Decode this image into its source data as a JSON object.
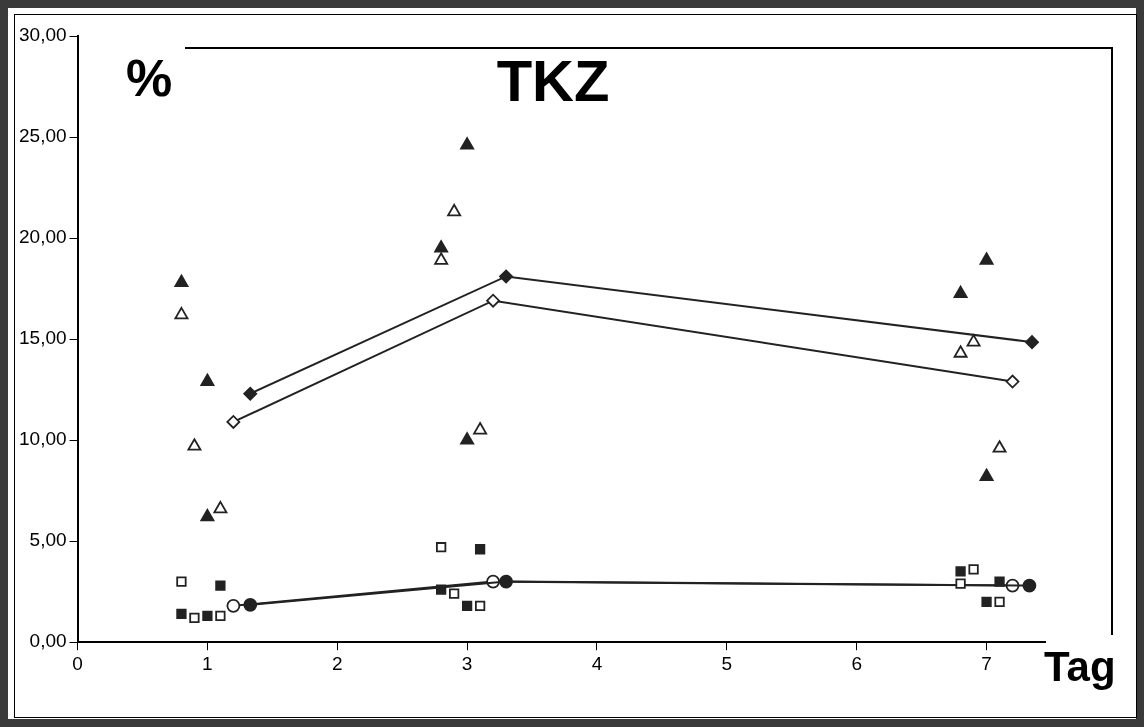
{
  "chart_data": {
    "type": "scatter",
    "title": "TKZ",
    "xlabel": "Tag",
    "ylabel": "%",
    "xlim": [
      0,
      7.45
    ],
    "xticks": [
      0,
      1,
      2,
      3,
      4,
      5,
      6,
      7
    ],
    "ylim": [
      0,
      30
    ],
    "yticks": [
      {
        "value": 0,
        "label": "0,00"
      },
      {
        "value": 5,
        "label": "5,00"
      },
      {
        "value": 10,
        "label": "10,00"
      },
      {
        "value": 15,
        "label": "15,00"
      },
      {
        "value": 20,
        "label": "20,00"
      },
      {
        "value": 25,
        "label": "25,00"
      },
      {
        "value": 30,
        "label": "30,00"
      }
    ],
    "legend": false,
    "series": [
      {
        "type": "scatter",
        "marker": "triangle",
        "color": "#222222",
        "x": [
          0.8,
          1,
          1,
          2.8,
          3,
          3,
          6.8,
          7,
          7
        ],
        "values": [
          17.8,
          12.9,
          6.2,
          19.5,
          24.6,
          10.0,
          17.25,
          18.9,
          8.2
        ]
      },
      {
        "type": "scatter",
        "marker": "triangle",
        "color": "#ffffff",
        "x": [
          0.8,
          0.9,
          1.1,
          2.8,
          2.9,
          3.1,
          6.8,
          6.9,
          7.1
        ],
        "values": [
          16.2,
          9.7,
          6.6,
          18.9,
          21.3,
          10.5,
          14.3,
          14.85,
          9.6
        ]
      },
      {
        "type": "scatter",
        "marker": "square",
        "color": "#222222",
        "x": [
          0.8,
          1,
          1.1,
          2.8,
          3,
          3.1,
          6.8,
          7,
          7.1
        ],
        "values": [
          1.4,
          1.3,
          2.8,
          2.6,
          1.8,
          4.6,
          3.5,
          2.0,
          3.0
        ]
      },
      {
        "type": "scatter",
        "marker": "square",
        "color": "#ffffff",
        "x": [
          0.8,
          0.9,
          1.1,
          2.8,
          2.9,
          3.1,
          6.8,
          6.9,
          7.1
        ],
        "values": [
          3.0,
          1.2,
          1.3,
          4.7,
          2.4,
          1.8,
          2.9,
          3.6,
          2.0
        ]
      },
      {
        "type": "line",
        "marker": "diamond",
        "color": "#222222",
        "x": [
          1.33,
          3.3,
          7.35
        ],
        "values": [
          12.3,
          18.1,
          14.85
        ]
      },
      {
        "type": "line",
        "marker": "diamond",
        "color": "#ffffff",
        "x": [
          1.2,
          3.2,
          7.2
        ],
        "values": [
          10.9,
          16.9,
          12.9
        ]
      },
      {
        "type": "line",
        "marker": "circle",
        "color": "#222222",
        "x": [
          1.33,
          3.3,
          7.33
        ],
        "values": [
          1.85,
          3.0,
          2.8
        ]
      },
      {
        "type": "line",
        "marker": "circle",
        "color": "#ffffff",
        "x": [
          1.2,
          3.2,
          7.2
        ],
        "values": [
          1.8,
          3.0,
          2.8
        ]
      }
    ]
  }
}
